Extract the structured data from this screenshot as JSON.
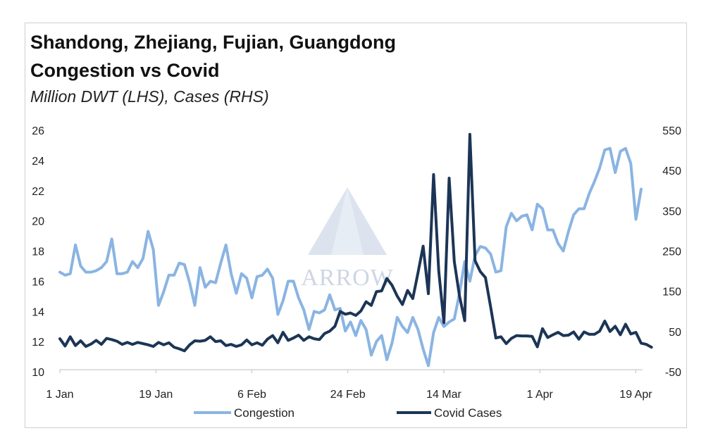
{
  "title_line1": "Shandong, Zhejiang, Fujian, Guangdong",
  "title_line2": "Congestion vs Covid",
  "subtitle": "Million DWT (LHS), Cases (RHS)",
  "watermark": "ARROW",
  "colors": {
    "congestion": "#8ab4e2",
    "covid": "#1c3556"
  },
  "chart_data": {
    "type": "line",
    "title": "Shandong, Zhejiang, Fujian, Guangdong Congestion vs Covid",
    "subtitle": "Million DWT (LHS), Cases (RHS)",
    "x_tick_labels": [
      "1 Jan",
      "19 Jan",
      "6 Feb",
      "24 Feb",
      "14 Mar",
      "1 Apr",
      "19 Apr"
    ],
    "x_tick_dates": [
      "2022-01-01",
      "2022-01-19",
      "2022-02-06",
      "2022-02-24",
      "2022-03-14",
      "2022-04-01",
      "2022-04-19"
    ],
    "x_range": [
      "2022-01-01",
      "2022-04-20"
    ],
    "y_left": {
      "range": [
        10,
        26
      ],
      "ticks": [
        "10",
        "12",
        "14",
        "16",
        "18",
        "20",
        "22",
        "24",
        "26"
      ]
    },
    "y_right": {
      "range": [
        -50,
        550
      ],
      "ticks": [
        "-50",
        "50",
        "150",
        "250",
        "350",
        "450",
        "550"
      ]
    },
    "legend_position": "bottom",
    "grid": false,
    "series": [
      {
        "name": "Congestion",
        "axis": "left",
        "values": [
          16.6,
          16.4,
          16.5,
          18.4,
          17.0,
          16.6,
          16.6,
          16.7,
          16.9,
          17.3,
          18.8,
          16.5,
          16.5,
          16.6,
          17.3,
          16.9,
          17.5,
          19.3,
          18.1,
          14.4,
          15.3,
          16.4,
          16.4,
          17.2,
          17.1,
          15.9,
          14.4,
          16.9,
          15.6,
          16.0,
          15.9,
          17.2,
          18.4,
          16.5,
          15.2,
          16.5,
          16.2,
          14.9,
          16.3,
          16.4,
          16.8,
          16.2,
          13.8,
          14.7,
          16.0,
          16.0,
          14.9,
          14.1,
          12.8,
          14.0,
          13.9,
          14.1,
          15.1,
          14.1,
          14.2,
          12.7,
          13.3,
          12.4,
          13.4,
          12.8,
          11.1,
          12.0,
          12.4,
          10.8,
          11.9,
          13.6,
          13.0,
          12.6,
          13.6,
          12.8,
          11.5,
          10.4,
          12.6,
          13.6,
          13.0,
          13.3,
          13.5,
          15.2,
          17.3,
          16.0,
          17.7,
          18.3,
          18.2,
          17.8,
          16.6,
          16.7,
          19.6,
          20.5,
          20.0,
          20.3,
          20.4,
          19.4,
          21.1,
          20.8,
          19.4,
          19.4,
          18.5,
          18.0,
          19.3,
          20.4,
          20.8,
          20.8,
          21.8,
          22.6,
          23.5,
          24.7,
          24.8,
          23.2,
          24.6,
          24.8,
          23.8,
          20.1,
          22.1
        ]
      },
      {
        "name": "Covid Cases",
        "axis": "right",
        "values": [
          32,
          14,
          37,
          15,
          27,
          13,
          19,
          28,
          18,
          33,
          30,
          26,
          18,
          23,
          18,
          23,
          20,
          17,
          13,
          23,
          17,
          22,
          11,
          7,
          2,
          17,
          27,
          26,
          28,
          37,
          25,
          27,
          15,
          18,
          13,
          17,
          29,
          17,
          22,
          16,
          31,
          40,
          22,
          48,
          28,
          34,
          41,
          28,
          37,
          32,
          30,
          45,
          51,
          63,
          100,
          93,
          96,
          90,
          101,
          124,
          115,
          149,
          151,
          182,
          165,
          138,
          117,
          152,
          132,
          196,
          262,
          144,
          440,
          201,
          72,
          431,
          224,
          138,
          77,
          540,
          226,
          199,
          184,
          111,
          34,
          37,
          20,
          33,
          40,
          39,
          39,
          38,
          12,
          57,
          35,
          42,
          48,
          40,
          41,
          49,
          31,
          49,
          43,
          43,
          51,
          76,
          50,
          63,
          42,
          68,
          44,
          48,
          21,
          18,
          11
        ]
      }
    ]
  }
}
